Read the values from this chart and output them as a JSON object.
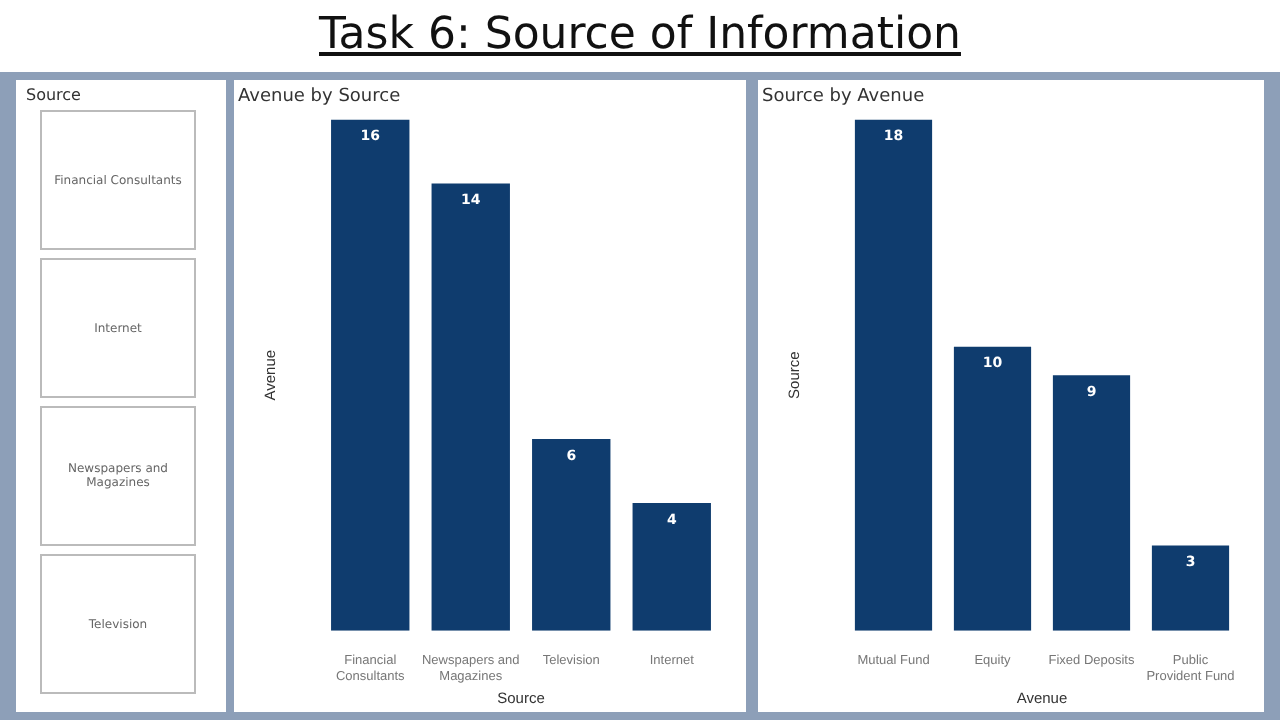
{
  "chart_data": [
    {
      "type": "other",
      "title": "Task 6: Source of Information"
    },
    {
      "type": "other",
      "title": "Source",
      "annotations": [
        "Financial Consultants",
        "Internet",
        "Newspapers and Magazines",
        "Television"
      ]
    },
    {
      "type": "bar",
      "title": "Avenue by Source",
      "xlabel": "Source",
      "ylabel": "Avenue",
      "categories": [
        "Financial Consultants",
        "Newspapers and Magazines",
        "Television",
        "Internet"
      ],
      "values": [
        16,
        14,
        6,
        4
      ],
      "color": "#0f3c6e",
      "data_labels": true,
      "grid": false,
      "legend": false
    },
    {
      "type": "bar",
      "title": "Source by Avenue",
      "xlabel": "Avenue",
      "ylabel": "Source",
      "categories": [
        "Mutual Fund",
        "Equity",
        "Fixed Deposits",
        "Public Provident Fund"
      ],
      "values": [
        18,
        10,
        9,
        3
      ],
      "color": "#0f3c6e",
      "data_labels": true,
      "grid": false,
      "legend": false
    }
  ]
}
